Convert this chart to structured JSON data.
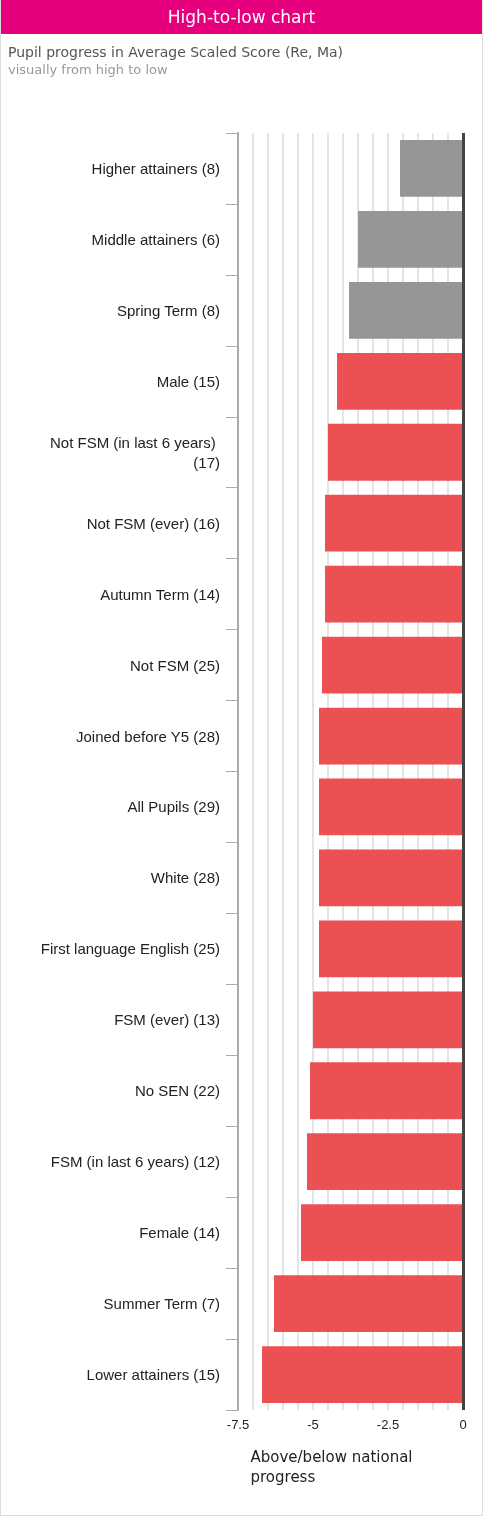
{
  "chart_data": {
    "type": "bar",
    "orientation": "horizontal",
    "title": "High-to-low chart",
    "subtitle": "Pupil progress in Average Scaled Score (Re, Ma)",
    "annotations": [
      "visually from high to low"
    ],
    "xlabel": "Above/below national progress",
    "categories": [
      "Higher attainers (8)",
      "Middle attainers (6)",
      "Spring Term (8)",
      "Male (15)",
      "Not FSM (in last 6 years) (17)",
      "Not FSM (ever) (16)",
      "Autumn Term (14)",
      "Not FSM (25)",
      "Joined before Y5 (28)",
      "All Pupils (29)",
      "White (28)",
      "First language English (25)",
      "FSM (ever) (13)",
      "No SEN (22)",
      "FSM (in last 6 years) (12)",
      "Female (14)",
      "Summer Term (7)",
      "Lower attainers (15)"
    ],
    "values": [
      -2.1,
      -3.5,
      -3.8,
      -4.2,
      -4.5,
      -4.6,
      -4.6,
      -4.7,
      -4.8,
      -4.8,
      -4.8,
      -4.8,
      -5.0,
      -5.1,
      -5.2,
      -5.4,
      -6.3,
      -6.7
    ],
    "colors": [
      "#969696",
      "#969696",
      "#969696",
      "#eb5053",
      "#eb5053",
      "#eb5053",
      "#eb5053",
      "#eb5053",
      "#eb5053",
      "#eb5053",
      "#eb5053",
      "#eb5053",
      "#eb5053",
      "#eb5053",
      "#eb5053",
      "#eb5053",
      "#eb5053",
      "#eb5053"
    ],
    "xlim": [
      -7.5,
      0
    ],
    "xticks": [
      -7.5,
      {
        "value": -7,
        "label": null
      },
      {
        "value": -6.5,
        "label": null
      },
      {
        "value": -6,
        "label": null
      },
      {
        "value": -5.5,
        "label": null
      },
      -5,
      {
        "value": -4.5,
        "label": null
      },
      {
        "value": -4,
        "label": null
      },
      {
        "value": -3.5,
        "label": null
      },
      {
        "value": -3,
        "label": null
      },
      -2.5,
      {
        "value": -2,
        "label": null
      },
      {
        "value": -1.5,
        "label": null
      },
      {
        "value": -1,
        "label": null
      },
      {
        "value": -0.5,
        "label": null
      },
      0
    ],
    "grid": "x"
  }
}
